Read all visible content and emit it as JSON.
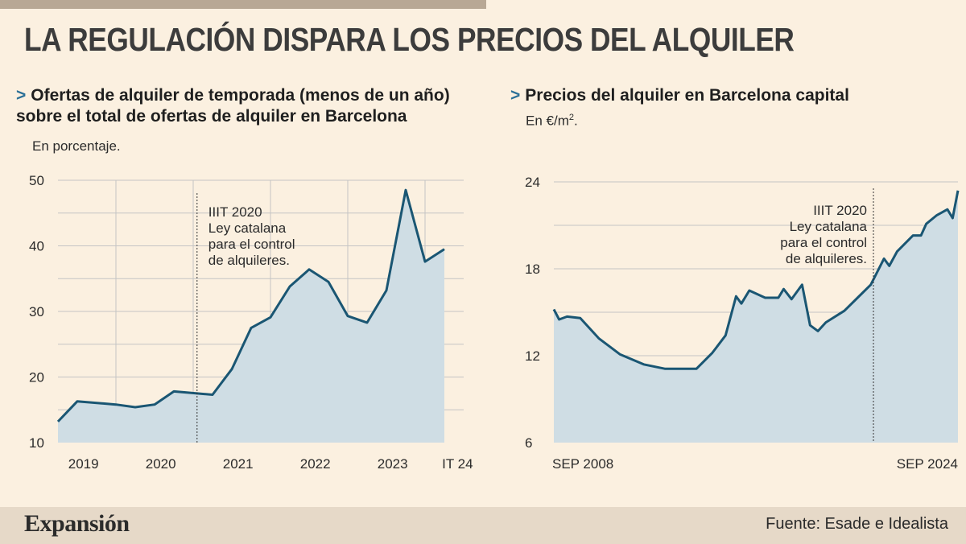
{
  "header": {
    "title": "LA REGULACIÓN DISPARA LOS PRECIOS DEL ALQUILER"
  },
  "footer": {
    "brand": "Expansión",
    "source": "Fuente: Esade e Idealista"
  },
  "colors": {
    "line": "#1a5673",
    "area": "#cfdde4",
    "chevron": "#2a6f97",
    "grid": "#c4c4c4"
  },
  "chart_data": [
    {
      "type": "area",
      "chevron": ">",
      "title": "Ofertas de alquiler de temporada (menos de un año) sobre el total de ofertas de alquiler en Barcelona",
      "ylabel": "En porcentaje.",
      "ylim": [
        10,
        50
      ],
      "yticks": [
        10,
        20,
        30,
        40,
        50
      ],
      "categories": [
        "2019",
        "2020",
        "2021",
        "2022",
        "2023",
        "IT 24"
      ],
      "x": [
        2018.75,
        2019.0,
        2019.5,
        2019.75,
        2020.0,
        2020.25,
        2020.75,
        2021.0,
        2021.25,
        2021.5,
        2021.75,
        2022.0,
        2022.25,
        2022.5,
        2022.75,
        2023.0,
        2023.25,
        2023.5,
        2023.75
      ],
      "values": [
        13.2,
        16.3,
        15.8,
        15.4,
        15.8,
        17.8,
        17.3,
        21.2,
        27.5,
        29.1,
        33.8,
        36.4,
        34.5,
        29.3,
        28.3,
        33.2,
        48.5,
        37.6,
        39.5
      ],
      "annotation": {
        "x": 2020.55,
        "lines": [
          "IIIT 2020",
          "Ley catalana",
          "para el control",
          "de alquileres."
        ]
      }
    },
    {
      "type": "area",
      "chevron": ">",
      "title": "Precios del alquiler en Barcelona capital",
      "ylabel": "En €/m",
      "ylabel_sup": "2",
      "ylabel_end": ".",
      "ylim": [
        6,
        24
      ],
      "yticks": [
        6,
        12,
        18,
        24
      ],
      "xticks": [
        "SEP 2008",
        "SEP 2024"
      ],
      "x": [
        2008.7,
        2008.9,
        2009.2,
        2009.7,
        2010.4,
        2011.2,
        2012.1,
        2012.9,
        2014.1,
        2014.7,
        2015.2,
        2015.6,
        2015.8,
        2016.1,
        2016.7,
        2017.2,
        2017.4,
        2017.7,
        2018.1,
        2018.4,
        2018.7,
        2019.0,
        2019.7,
        2020.2,
        2020.7,
        2021.2,
        2021.4,
        2021.7,
        2022.3,
        2022.6,
        2022.8,
        2023.2,
        2023.6,
        2023.8,
        2024.0
      ],
      "values": [
        15.2,
        14.5,
        14.7,
        14.6,
        13.2,
        12.1,
        11.4,
        11.1,
        11.1,
        12.2,
        13.4,
        16.1,
        15.6,
        16.5,
        16.0,
        16.0,
        16.6,
        15.9,
        16.9,
        14.1,
        13.7,
        14.3,
        15.1,
        16.0,
        16.9,
        18.7,
        18.2,
        19.2,
        20.3,
        20.3,
        21.1,
        21.7,
        22.1,
        21.5,
        23.4
      ],
      "annotation": {
        "x": 2020.8,
        "lines": [
          "IIIT 2020",
          "Ley catalana",
          "para el control",
          "de alquileres."
        ]
      }
    }
  ]
}
